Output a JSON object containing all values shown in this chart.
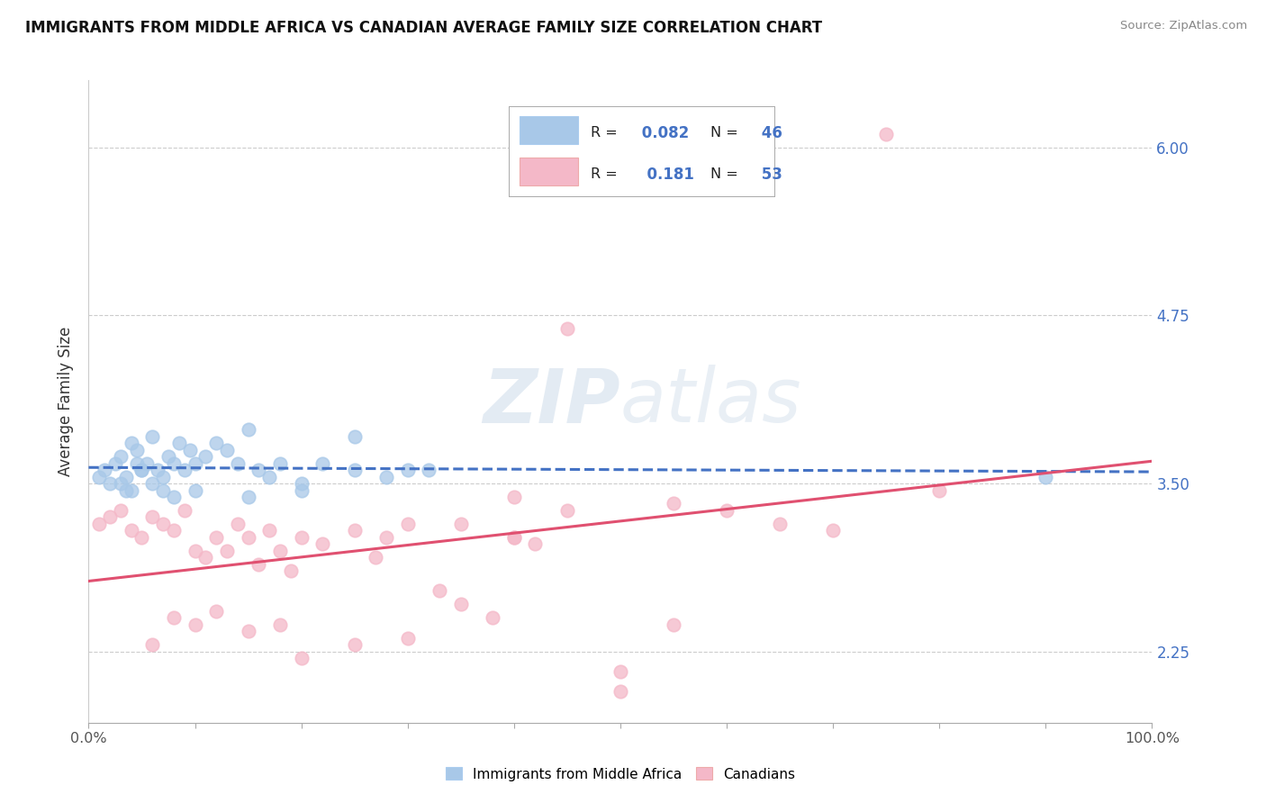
{
  "title": "IMMIGRANTS FROM MIDDLE AFRICA VS CANADIAN AVERAGE FAMILY SIZE CORRELATION CHART",
  "source": "Source: ZipAtlas.com",
  "ylabel": "Average Family Size",
  "legend_label_blue": "Immigrants from Middle Africa",
  "legend_label_pink": "Canadians",
  "r_blue": "0.082",
  "n_blue": "46",
  "r_pink": "0.181",
  "n_pink": "53",
  "color_blue": "#a8c8e8",
  "color_pink": "#f4b8c8",
  "line_color_blue": "#4472c4",
  "line_color_pink": "#e05070",
  "xlim": [
    0,
    100
  ],
  "ylim": [
    1.72,
    6.5
  ],
  "yticks": [
    2.25,
    3.5,
    4.75,
    6.0
  ],
  "xtick_vals": [
    0,
    10,
    20,
    30,
    40,
    50,
    60,
    70,
    80,
    90,
    100
  ],
  "xtick_labels_show": [
    "0.0%",
    "",
    "",
    "",
    "",
    "",
    "",
    "",
    "",
    "",
    "100.0%"
  ],
  "background": "#ffffff",
  "grid_color": "#cccccc",
  "watermark_text": "ZIPatlas",
  "blue_x": [
    1.0,
    1.5,
    2.0,
    2.5,
    3.0,
    3.5,
    4.0,
    4.5,
    5.0,
    5.5,
    6.0,
    6.5,
    7.0,
    7.5,
    8.0,
    8.5,
    9.0,
    9.5,
    10.0,
    11.0,
    12.0,
    13.0,
    14.0,
    15.0,
    16.0,
    17.0,
    18.0,
    20.0,
    22.0,
    25.0,
    28.0,
    32.0,
    25.0,
    20.0,
    15.0,
    10.0,
    8.0,
    6.0,
    5.0,
    4.0,
    3.0,
    3.5,
    4.5,
    7.0,
    90.0,
    30.0
  ],
  "blue_y": [
    3.55,
    3.6,
    3.5,
    3.65,
    3.7,
    3.55,
    3.8,
    3.75,
    3.6,
    3.65,
    3.5,
    3.6,
    3.55,
    3.7,
    3.65,
    3.8,
    3.6,
    3.75,
    3.65,
    3.7,
    3.8,
    3.75,
    3.65,
    3.9,
    3.6,
    3.55,
    3.65,
    3.5,
    3.65,
    3.6,
    3.55,
    3.6,
    3.85,
    3.45,
    3.4,
    3.45,
    3.4,
    3.85,
    3.6,
    3.45,
    3.5,
    3.45,
    3.65,
    3.45,
    3.55,
    3.6
  ],
  "pink_x": [
    1.0,
    2.0,
    3.0,
    4.0,
    5.0,
    6.0,
    7.0,
    8.0,
    9.0,
    10.0,
    11.0,
    12.0,
    13.0,
    14.0,
    15.0,
    16.0,
    17.0,
    18.0,
    19.0,
    20.0,
    22.0,
    25.0,
    27.0,
    28.0,
    30.0,
    33.0,
    35.0,
    38.0,
    40.0,
    42.0,
    30.0,
    25.0,
    20.0,
    18.0,
    15.0,
    12.0,
    10.0,
    8.0,
    6.0,
    35.0,
    40.0,
    45.0,
    50.0,
    55.0,
    45.0,
    60.0,
    65.0,
    70.0,
    55.0,
    75.0,
    50.0,
    40.0,
    80.0
  ],
  "pink_y": [
    3.2,
    3.25,
    3.3,
    3.15,
    3.1,
    3.25,
    3.2,
    3.15,
    3.3,
    3.0,
    2.95,
    3.1,
    3.0,
    3.2,
    3.1,
    2.9,
    3.15,
    3.0,
    2.85,
    3.1,
    3.05,
    3.15,
    2.95,
    3.1,
    3.2,
    2.7,
    2.6,
    2.5,
    3.1,
    3.05,
    2.35,
    2.3,
    2.2,
    2.45,
    2.4,
    2.55,
    2.45,
    2.5,
    2.3,
    3.2,
    3.1,
    3.3,
    2.1,
    2.45,
    4.65,
    3.3,
    3.2,
    3.15,
    3.35,
    6.1,
    1.95,
    3.4,
    3.45
  ]
}
